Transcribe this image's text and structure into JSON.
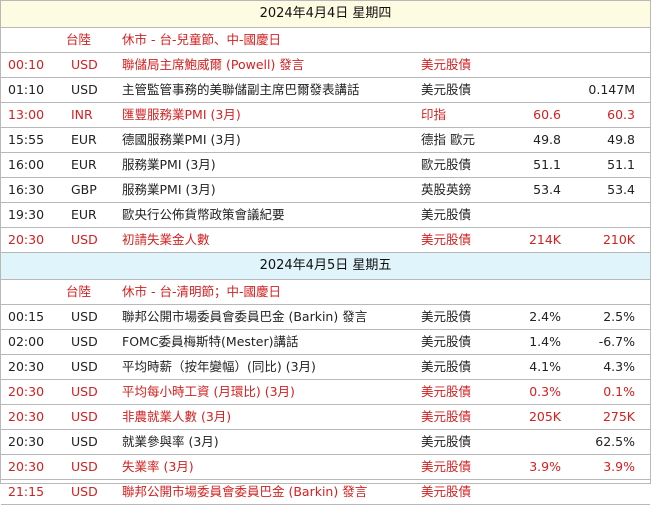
{
  "days": [
    {
      "date": "2024年4月4日",
      "weekday": "星期四",
      "holiday_market": "台陸",
      "holiday_text": "休市 - 台-兒童節、中-國慶日",
      "events": [
        {
          "time": "00:10",
          "currency": "USD",
          "event": "聯儲局主席鮑威爾 (Powell) 發言",
          "asset": "美元股債",
          "previous": "",
          "forecast": "",
          "highlight": true
        },
        {
          "time": "01:10",
          "currency": "USD",
          "event": "主管監管事務的美聯儲副主席巴爾發表講話",
          "asset": "美元股債",
          "previous": "",
          "forecast": "0.147M",
          "highlight": false
        },
        {
          "time": "13:00",
          "currency": "INR",
          "event": "匯豐服務業PMI (3月)",
          "asset": "印指",
          "previous": "60.6",
          "forecast": "60.3",
          "highlight": true
        },
        {
          "time": "15:55",
          "currency": "EUR",
          "event": "德國服務業PMI (3月)",
          "asset": "德指 歐元",
          "previous": "49.8",
          "forecast": "49.8",
          "highlight": false
        },
        {
          "time": "16:00",
          "currency": "EUR",
          "event": "服務業PMI (3月)",
          "asset": "歐元股債",
          "previous": "51.1",
          "forecast": "51.1",
          "highlight": false
        },
        {
          "time": "16:30",
          "currency": "GBP",
          "event": "服務業PMI (3月)",
          "asset": "英股英鎊",
          "previous": "53.4",
          "forecast": "53.4",
          "highlight": false
        },
        {
          "time": "19:30",
          "currency": "EUR",
          "event": "歐央行公佈貨幣政策會議紀要",
          "asset": "美元股債",
          "previous": "",
          "forecast": "",
          "highlight": false
        },
        {
          "time": "20:30",
          "currency": "USD",
          "event": "初請失業金人數",
          "asset": "美元股債",
          "previous": "214K",
          "forecast": "210K",
          "highlight": true
        }
      ]
    },
    {
      "date": "2024年4月5日",
      "weekday": "星期五",
      "holiday_market": "台陸",
      "holiday_text": "休市 - 台-清明節；中-國慶日",
      "events": [
        {
          "time": "00:15",
          "currency": "USD",
          "event": "聯邦公開市場委員會委員巴金 (Barkin) 發言",
          "asset": "美元股債",
          "previous": "2.4%",
          "forecast": "2.5%",
          "highlight": false
        },
        {
          "time": "02:00",
          "currency": "USD",
          "event": "FOMC委員梅斯特(Mester)講話",
          "asset": "美元股債",
          "previous": "1.4%",
          "forecast": "-6.7%",
          "highlight": false
        },
        {
          "time": "20:30",
          "currency": "USD",
          "event": "平均時薪（按年變幅）(同比) (3月)",
          "asset": "美元股債",
          "previous": "4.1%",
          "forecast": "4.3%",
          "highlight": false
        },
        {
          "time": "20:30",
          "currency": "USD",
          "event": "平均每小時工資 (月環比) (3月)",
          "asset": "美元股債",
          "previous": "0.3%",
          "forecast": "0.1%",
          "highlight": true
        },
        {
          "time": "20:30",
          "currency": "USD",
          "event": "非農就業人數 (3月)",
          "asset": "美元股債",
          "previous": "205K",
          "forecast": "275K",
          "highlight": true
        },
        {
          "time": "20:30",
          "currency": "USD",
          "event": "就業參與率 (3月)",
          "asset": "美元股債",
          "previous": "",
          "forecast": "62.5%",
          "highlight": false
        },
        {
          "time": "20:30",
          "currency": "USD",
          "event": "失業率 (3月)",
          "asset": "美元股債",
          "previous": "3.9%",
          "forecast": "3.9%",
          "highlight": true
        },
        {
          "time": "21:15",
          "currency": "USD",
          "event": "聯邦公開市場委員會委員巴金 (Barkin) 發言",
          "asset": "美元股債",
          "previous": "",
          "forecast": "",
          "highlight": true
        }
      ]
    }
  ]
}
